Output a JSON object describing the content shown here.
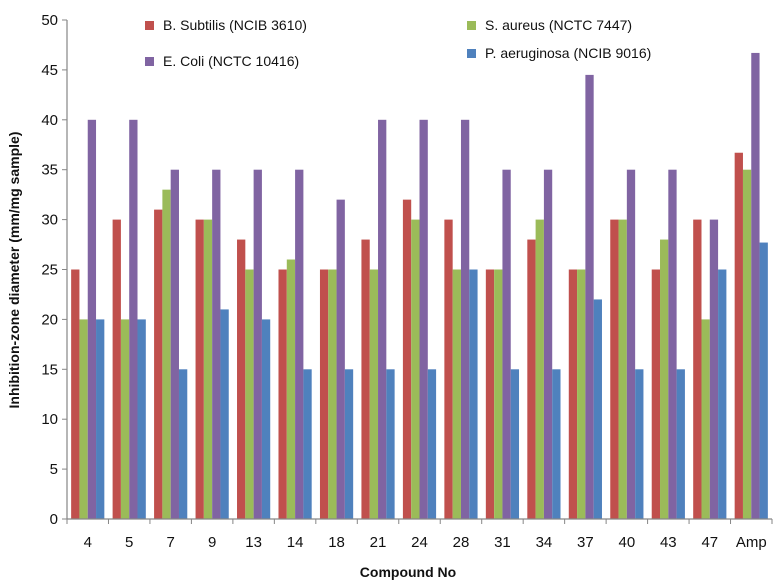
{
  "chart_data": {
    "type": "bar",
    "title": "",
    "xlabel": "Compound No",
    "ylabel": "Inhibition-zone diameter (mm/mg sample)",
    "ylim": [
      0,
      50
    ],
    "yticks": [
      0,
      5,
      10,
      15,
      20,
      25,
      30,
      35,
      40,
      45,
      50
    ],
    "grid": false,
    "legend_position": "top",
    "categories": [
      "4",
      "5",
      "7",
      "9",
      "13",
      "14",
      "18",
      "21",
      "24",
      "28",
      "31",
      "34",
      "37",
      "40",
      "43",
      "47",
      "Amp"
    ],
    "series": [
      {
        "name": "B. Subtilis (NCIB 3610)",
        "color": "#c0504d",
        "values": [
          25,
          30,
          31,
          30,
          28,
          25,
          25,
          28,
          32,
          30,
          25,
          28,
          25,
          30,
          25,
          30,
          36.7
        ]
      },
      {
        "name": "S. aureus (NCTC 7447)",
        "color": "#9bbb59",
        "values": [
          20,
          20,
          33,
          30,
          25,
          26,
          25,
          25,
          30,
          25,
          25,
          30,
          25,
          30,
          28,
          20,
          35
        ]
      },
      {
        "name": "E. Coli (NCTC 10416)",
        "color": "#8064a2",
        "values": [
          40,
          40,
          35,
          35,
          35,
          35,
          32,
          40,
          40,
          40,
          35,
          35,
          44.5,
          35,
          35,
          30,
          46.7
        ]
      },
      {
        "name": "P. aeruginosa (NCIB 9016)",
        "color": "#4f81bd",
        "values": [
          20,
          20,
          15,
          21,
          20,
          15,
          15,
          15,
          15,
          25,
          15,
          15,
          22,
          15,
          15,
          25,
          27.7
        ]
      }
    ],
    "legend_order": [
      0,
      1,
      2,
      3
    ]
  }
}
